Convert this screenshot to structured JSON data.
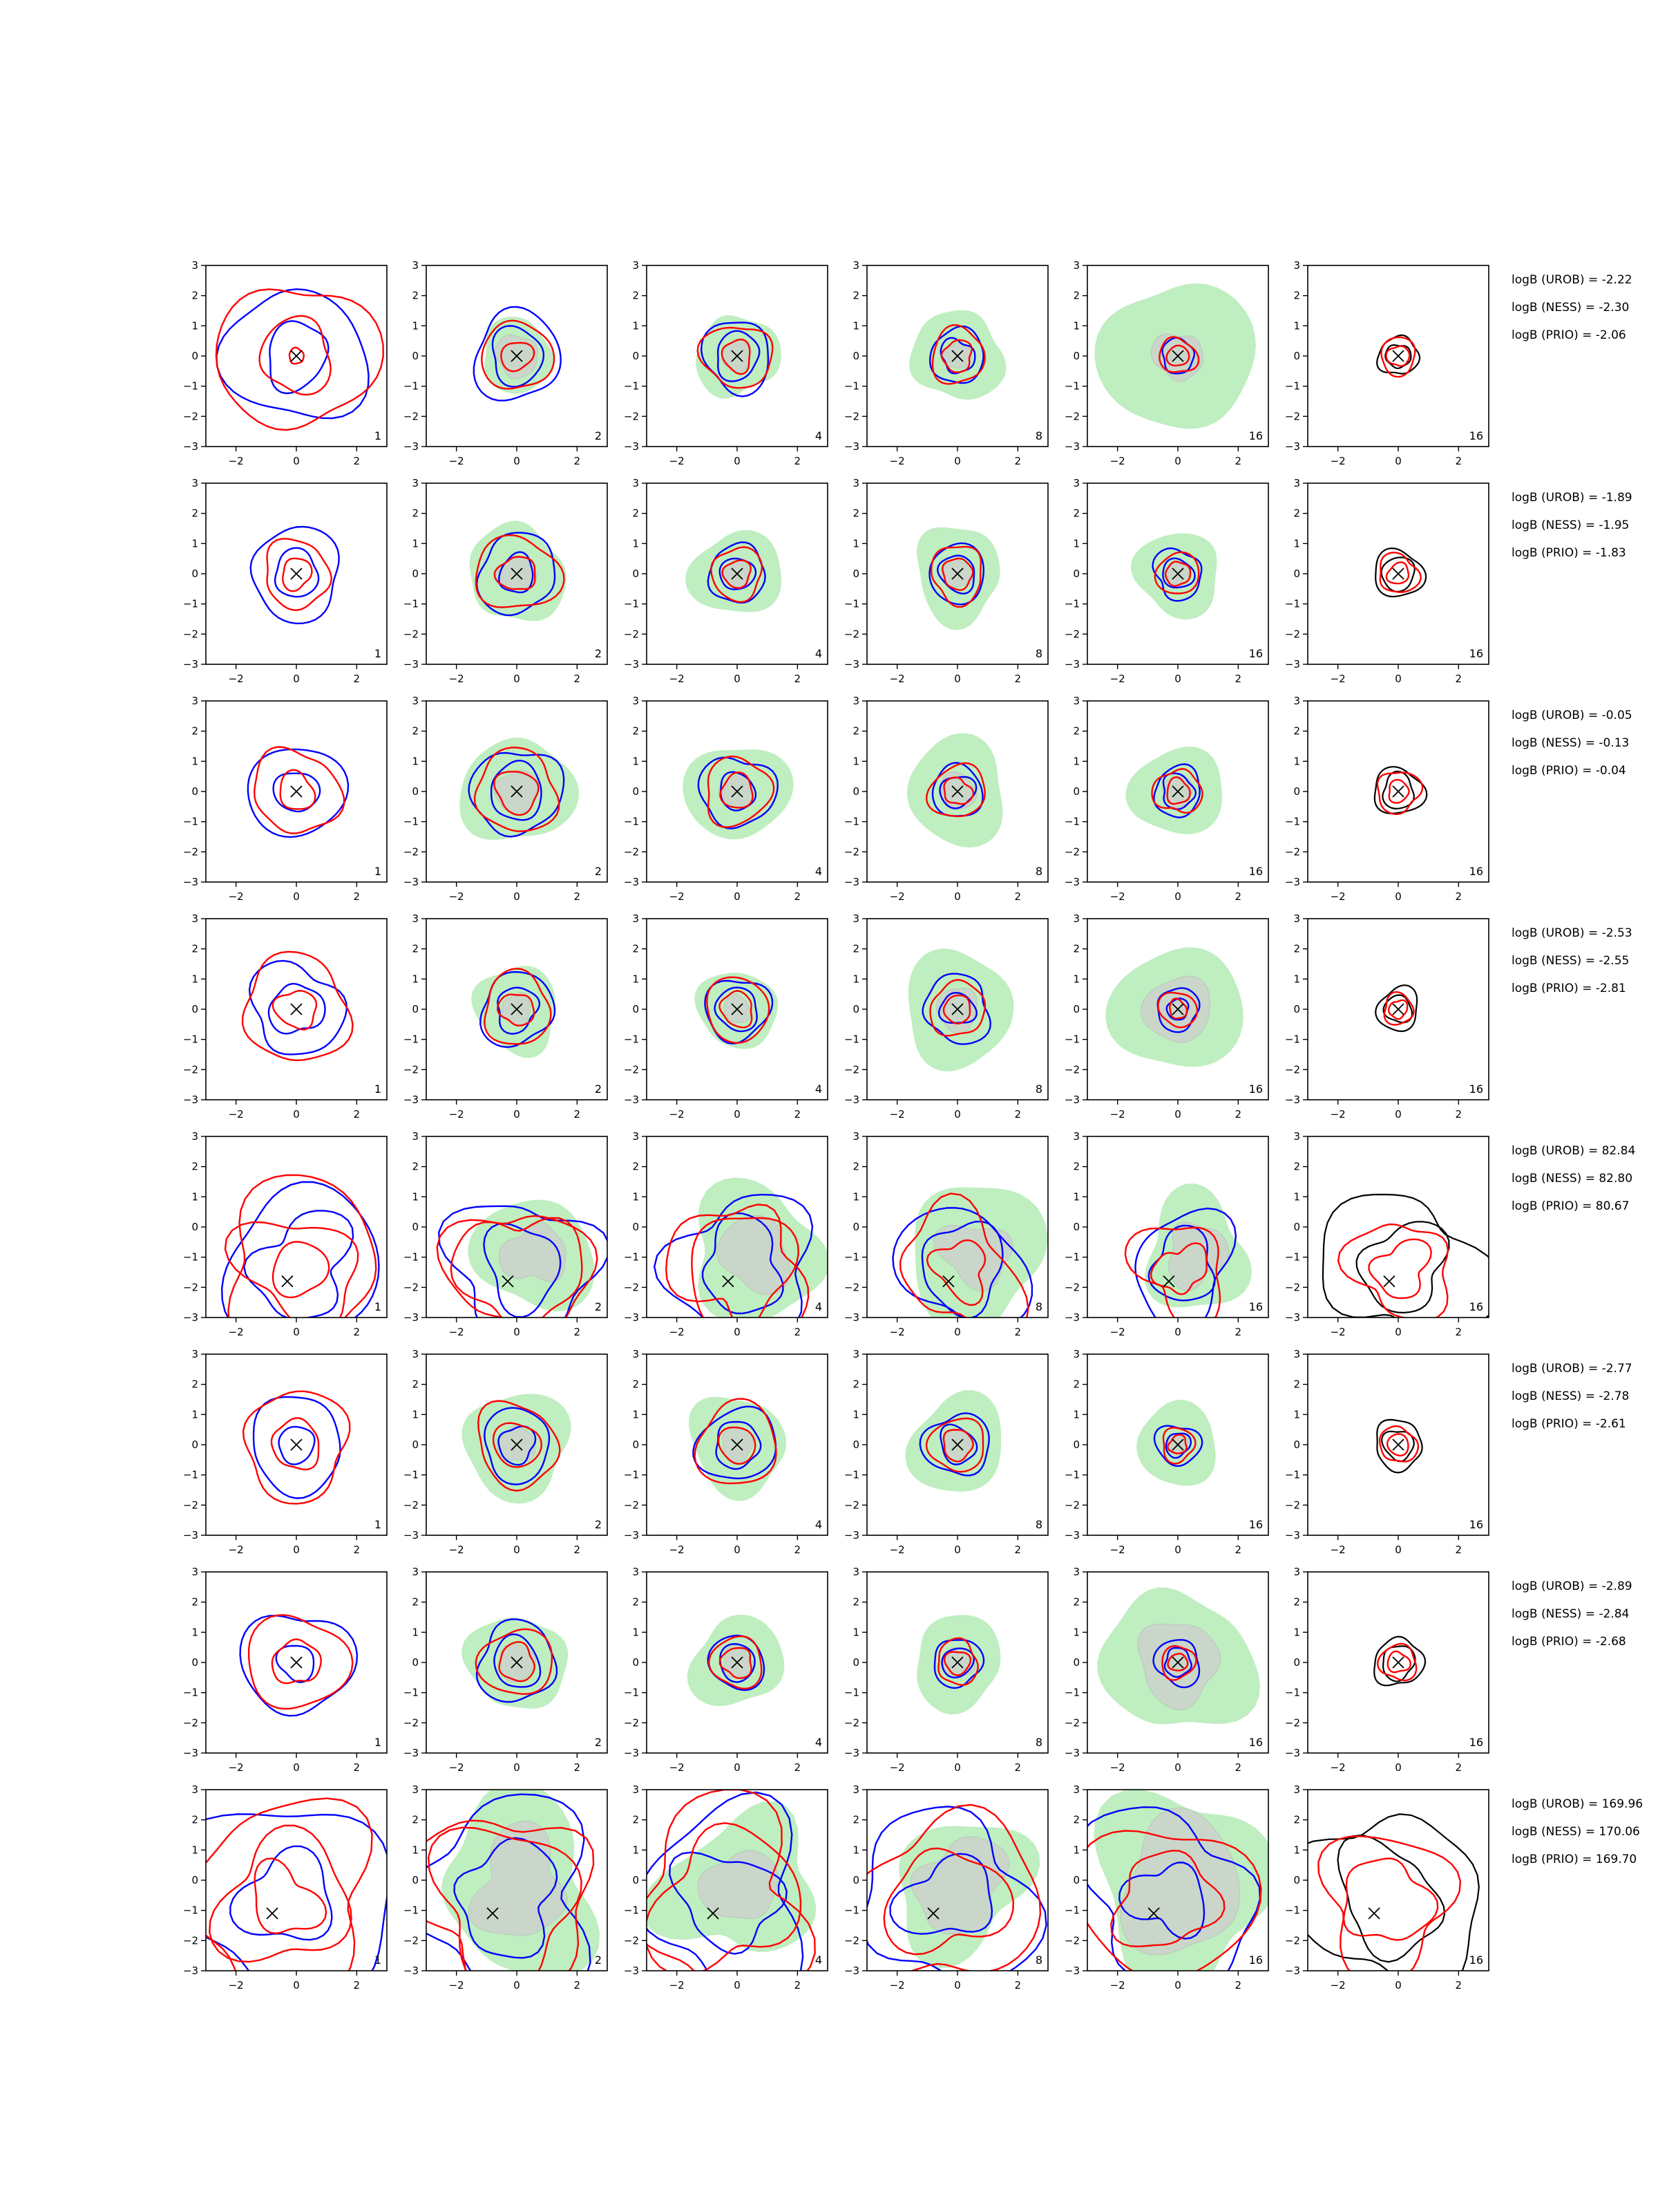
{
  "figure": {
    "axis": {
      "xlim": [
        -3,
        3
      ],
      "ylim": [
        -3,
        3
      ],
      "xticks": [
        -2,
        0,
        2
      ],
      "yticks": [
        -3,
        -2,
        -1,
        0,
        1,
        2,
        3
      ],
      "xtick_labels": [
        "−2",
        "0",
        "2"
      ],
      "ytick_labels": [
        "−3",
        "−2",
        "−1",
        "0",
        "1",
        "2",
        "3"
      ]
    },
    "colors": {
      "red": "#ff0000",
      "blue": "#0000ff",
      "black": "#000000",
      "green_fill": "#bfeec0",
      "gray_fill": "#c9d6c9"
    },
    "column_labels": [
      "1",
      "2",
      "4",
      "8",
      "16",
      "16"
    ],
    "marker": "x"
  },
  "chart_data": [
    {
      "type": "contour",
      "row": 1,
      "center": [
        0,
        0
      ],
      "annotations": [
        "logB (UROB) = -2.22",
        "logB (NESS) = -2.30",
        "logB (PRIO) = -2.06"
      ],
      "red_radii": [
        [
          0.25,
          1.2,
          2.5
        ],
        [
          0.5,
          1.15
        ],
        [
          0.5,
          1.1
        ],
        [
          0.5,
          0.9
        ],
        [
          0.35,
          0.6
        ],
        [
          0.35,
          0.6
        ]
      ],
      "blue_radii": [
        [
          1.05,
          2.25
        ],
        [
          0.9,
          1.45
        ],
        [
          0.75,
          1.15
        ],
        [
          0.55,
          0.9
        ],
        [
          0.55
        ],
        []
      ],
      "black_radii": [
        0.4,
        0.65
      ],
      "green_r": [
        0,
        1.2,
        1.35,
        1.5,
        2.5,
        0
      ],
      "gray_r": [
        0,
        0.7,
        0.5,
        0.45,
        0.8,
        0
      ]
    },
    {
      "type": "contour",
      "row": 2,
      "center": [
        0,
        0
      ],
      "annotations": [
        "logB (UROB) = -1.89",
        "logB (NESS) = -1.95",
        "logB (PRIO) = -1.83"
      ],
      "red_radii": [
        [
          0.5,
          1.1
        ],
        [
          0.6,
          1.3
        ],
        [
          0.45,
          0.85
        ],
        [
          0.5,
          0.9
        ],
        [
          0.4,
          0.7
        ],
        [
          0.35,
          0.65
        ]
      ],
      "blue_radii": [
        [
          0.75,
          1.5
        ],
        [
          0.6,
          1.3
        ],
        [
          0.55,
          0.95
        ],
        [
          0.6,
          0.95
        ],
        [
          0.5,
          0.8
        ],
        []
      ],
      "black_radii": [
        0.55,
        0.8
      ],
      "green_r": [
        0,
        1.6,
        1.45,
        1.5,
        1.4,
        0
      ],
      "gray_r": [
        0,
        0.6,
        0.45,
        0.5,
        0.4,
        0
      ]
    },
    {
      "type": "contour",
      "row": 3,
      "center": [
        0,
        0
      ],
      "annotations": [
        "logB (UROB) = -0.05",
        "logB (NESS) = -0.13",
        "logB (PRIO) = -0.04"
      ],
      "red_radii": [
        [
          0.6,
          1.4
        ],
        [
          0.7,
          1.35
        ],
        [
          0.55,
          1.1
        ],
        [
          0.45,
          0.9
        ],
        [
          0.4,
          0.75
        ],
        [
          0.35,
          0.7
        ]
      ],
      "blue_radii": [
        [
          0.7,
          1.55
        ],
        [
          0.9,
          1.45
        ],
        [
          0.6,
          1.2
        ],
        [
          0.55,
          0.85
        ],
        [
          0.55,
          0.8
        ],
        []
      ],
      "black_radii": [
        0.55,
        0.8
      ],
      "green_r": [
        0,
        1.8,
        1.65,
        1.7,
        1.5,
        0
      ],
      "gray_r": [
        0,
        0.7,
        0.55,
        0.6,
        0.5,
        0
      ]
    },
    {
      "type": "contour",
      "row": 4,
      "center": [
        0,
        0
      ],
      "annotations": [
        "logB (UROB) = -2.53",
        "logB (NESS) = -2.55",
        "logB (PRIO) = -2.81"
      ],
      "red_radii": [
        [
          0.65,
          1.75
        ],
        [
          0.55,
          1.15
        ],
        [
          0.55,
          1.05
        ],
        [
          0.45,
          0.9
        ],
        [
          0.3,
          0.6
        ],
        [
          0.3,
          0.5
        ]
      ],
      "blue_radii": [
        [
          0.85,
          1.5
        ],
        [
          0.7,
          1.2
        ],
        [
          0.7,
          1.05
        ],
        [
          0.55,
          1.1
        ],
        [
          0.35,
          0.7
        ],
        []
      ],
      "black_radii": [
        0.45,
        0.7
      ],
      "green_r": [
        0,
        1.4,
        1.3,
        1.85,
        2.1,
        0
      ],
      "gray_r": [
        0,
        0.5,
        0.45,
        0.7,
        1.1,
        0
      ]
    },
    {
      "type": "contour",
      "row": 5,
      "center": [
        -0.3,
        -1.8
      ],
      "annotations": [
        "logB (UROB) = 82.84",
        "logB (NESS) = 82.80",
        "logB (PRIO) = 80.67"
      ],
      "red_radii": [
        [
          0.9,
          1.8,
          2.7
        ],
        [
          1.9,
          2.15
        ],
        [
          1.8,
          2.1
        ],
        [
          0.9,
          1.9
        ],
        [
          0.8,
          1.5
        ],
        [
          0.9,
          1.6
        ]
      ],
      "blue_radii": [
        [
          1.6,
          2.55
        ],
        [
          1.3,
          2.3
        ],
        [
          1.4,
          2.3
        ],
        [
          1.4,
          2.0
        ],
        [
          1.1,
          1.7
        ],
        []
      ],
      "black_radii": [
        1.4,
        2.5
      ],
      "green_r": [
        0,
        1.9,
        2.2,
        2.3,
        1.8,
        0
      ],
      "gray_r": [
        0,
        1.0,
        1.2,
        1.1,
        1.0,
        0
      ]
    },
    {
      "type": "contour",
      "row": 6,
      "center": [
        0,
        0
      ],
      "annotations": [
        "logB (UROB) = -2.77",
        "logB (NESS) = -2.78",
        "logB (PRIO) = -2.61"
      ],
      "red_radii": [
        [
          0.8,
          1.75
        ],
        [
          0.75,
          1.35
        ],
        [
          0.6,
          1.35
        ],
        [
          0.5,
          0.9
        ],
        [
          0.3,
          0.55
        ],
        [
          0.35,
          0.6
        ]
      ],
      "blue_radii": [
        [
          0.6,
          1.55
        ],
        [
          0.6,
          1.15
        ],
        [
          0.75,
          1.25
        ],
        [
          0.6,
          1.05
        ],
        [
          0.4,
          0.7
        ],
        []
      ],
      "black_radii": [
        0.5,
        0.8
      ],
      "green_r": [
        0,
        1.75,
        1.6,
        1.6,
        1.35,
        0
      ],
      "gray_r": [
        0,
        0.6,
        0.55,
        0.5,
        0.35,
        0
      ]
    },
    {
      "type": "contour",
      "row": 7,
      "center": [
        0,
        0
      ],
      "annotations": [
        "logB (UROB) = -2.89",
        "logB (NESS) = -2.84",
        "logB (PRIO) = -2.68"
      ],
      "red_radii": [
        [
          0.75,
          1.6
        ],
        [
          0.6,
          1.15
        ],
        [
          0.5,
          0.85
        ],
        [
          0.4,
          0.7
        ],
        [
          0.3,
          0.55
        ],
        [
          0.35,
          0.6
        ]
      ],
      "blue_radii": [
        [
          0.6,
          1.75
        ],
        [
          0.8,
          1.3
        ],
        [
          0.6,
          0.9
        ],
        [
          0.5,
          0.8
        ],
        [
          0.45,
          0.75
        ],
        []
      ],
      "black_radii": [
        0.55,
        0.8
      ],
      "green_r": [
        0,
        1.6,
        1.5,
        1.5,
        2.4,
        0
      ],
      "gray_r": [
        0,
        0.6,
        0.5,
        0.5,
        1.35,
        0
      ]
    },
    {
      "type": "contour",
      "row": 8,
      "center": [
        -0.8,
        -1.1
      ],
      "annotations": [
        "logB (UROB) = 169.96",
        "logB (NESS) = 170.06",
        "logB (PRIO) = 169.70"
      ],
      "red_radii": [
        [
          1.1,
          2.1,
          3.1
        ],
        [
          2.4,
          2.9
        ],
        [
          2.3,
          2.9
        ],
        [
          1.8,
          2.9
        ],
        [
          1.6,
          2.7
        ],
        [
          1.4,
          2.2
        ]
      ],
      "blue_radii": [
        [
          1.5,
          3.4
        ],
        [
          1.7,
          3.0
        ],
        [
          1.6,
          2.8
        ],
        [
          1.4,
          2.8
        ],
        [
          1.2,
          2.8
        ],
        []
      ],
      "black_radii": [
        1.7,
        2.9
      ],
      "green_r": [
        0,
        2.7,
        2.4,
        2.2,
        3.0,
        0
      ],
      "gray_r": [
        0,
        1.6,
        1.2,
        1.5,
        2.1,
        0
      ]
    }
  ]
}
